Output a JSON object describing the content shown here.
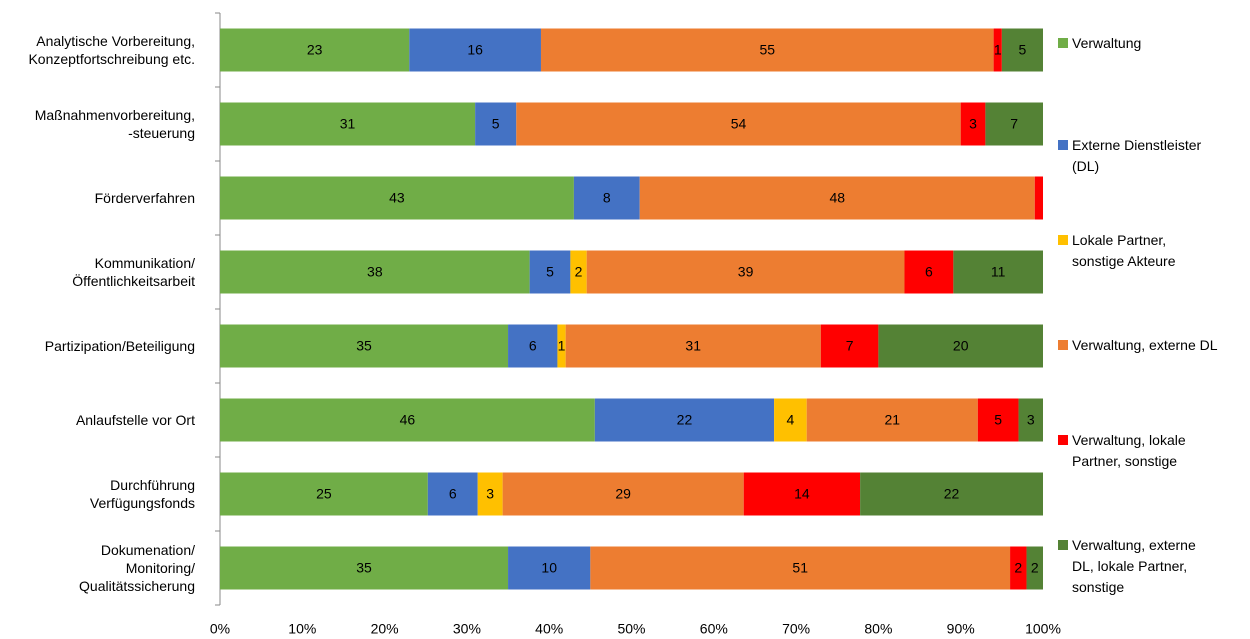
{
  "chart_data": {
    "type": "stacked_bar_horizontal",
    "categories": [
      "Analytische Vorbereitung,\nKonzeptfortschreibung etc.",
      "Maßnahmenvorbereitung,\n-steuerung",
      "Förderverfahren",
      "Kommunikation/\nÖffentlichkeitsarbeit",
      "Partizipation/Beteiligung",
      "Anlaufstelle vor Ort",
      "Durchführung\nVerfügungsfonds",
      "Dokumenation/\nMonitoring/\nQualitätssicherung"
    ],
    "series": [
      {
        "name": "Verwaltung",
        "color": "#70ad47",
        "values": [
          23,
          31,
          43,
          38,
          35,
          46,
          25,
          35
        ]
      },
      {
        "name": "Externe Dienstleister\n(DL)",
        "color": "#4472c4",
        "values": [
          16,
          5,
          8,
          5,
          6,
          22,
          6,
          10
        ]
      },
      {
        "name": "Lokale Partner,\nsonstige Akteure",
        "color": "#ffc000",
        "values": [
          0,
          0,
          0,
          2,
          1,
          4,
          3,
          0
        ],
        "value_labels": [
          null,
          null,
          null,
          "2",
          "1",
          "4",
          "3",
          null
        ]
      },
      {
        "name": "Verwaltung, externe DL",
        "color": "#ed7d31",
        "values": [
          55,
          54,
          48,
          39,
          31,
          21,
          29,
          51
        ]
      },
      {
        "name": "Verwaltung, lokale\nPartner, sonstige",
        "color": "#ff0000",
        "values": [
          1,
          3,
          1,
          6,
          7,
          5,
          14,
          2
        ],
        "value_labels": [
          "1",
          "3",
          null,
          "6",
          "7",
          "5",
          "14",
          "2"
        ]
      },
      {
        "name": "Verwaltung, externe\nDL, lokale Partner,\nsonstige",
        "color": "#548235",
        "values": [
          5,
          7,
          0,
          11,
          20,
          3,
          22,
          2
        ],
        "value_labels": [
          "5",
          "7",
          null,
          "11",
          "20",
          "3",
          "22",
          "2"
        ]
      }
    ],
    "xlim": [
      0,
      100
    ],
    "xticks": [
      {
        "value": 0,
        "label": "0%"
      },
      {
        "value": 10,
        "label": "10%"
      },
      {
        "value": 20,
        "label": "20%"
      },
      {
        "value": 30,
        "label": "30%"
      },
      {
        "value": 40,
        "label": "40%"
      },
      {
        "value": 50,
        "label": "50%"
      },
      {
        "value": 60,
        "label": "60%"
      },
      {
        "value": 70,
        "label": "70%"
      },
      {
        "value": 80,
        "label": "80%"
      },
      {
        "value": 90,
        "label": "90%"
      },
      {
        "value": 100,
        "label": "100%"
      }
    ],
    "legend": "right"
  }
}
